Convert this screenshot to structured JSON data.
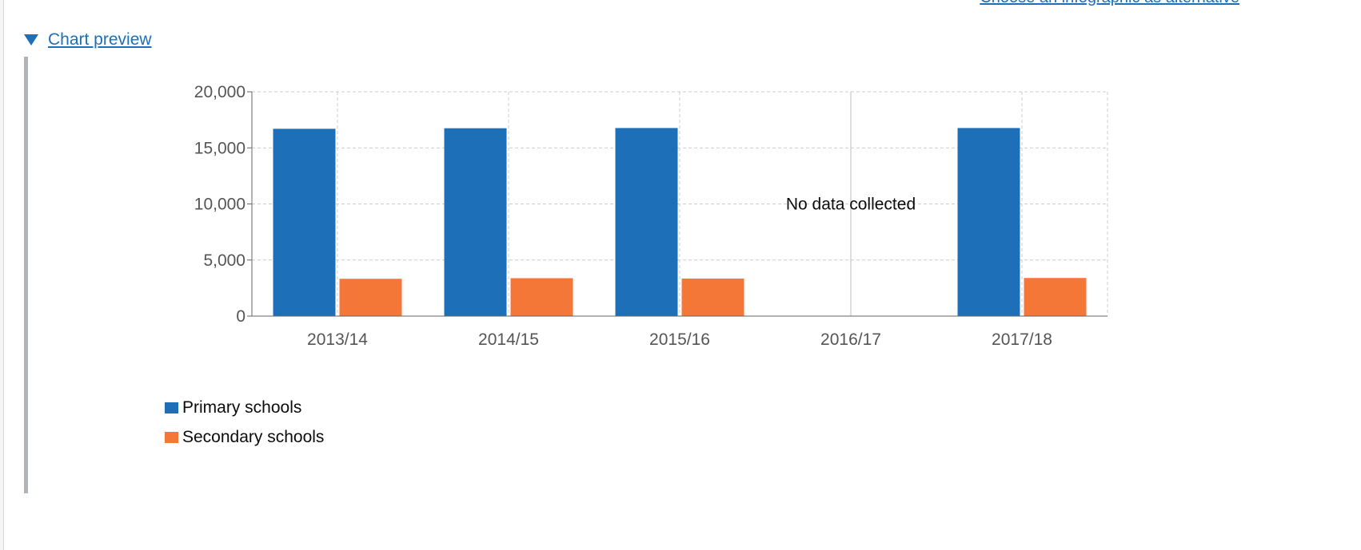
{
  "header": {
    "alt_link": "Choose an infographic as alternative"
  },
  "details": {
    "summary": "Chart preview"
  },
  "chart_data": {
    "type": "bar",
    "categories": [
      "2013/14",
      "2014/15",
      "2015/16",
      "2016/17",
      "2017/18"
    ],
    "series": [
      {
        "name": "Primary schools",
        "color": "#1d70b8",
        "values": [
          16700,
          16750,
          16770,
          null,
          16770
        ]
      },
      {
        "name": "Secondary schools",
        "color": "#f47738",
        "values": [
          3330,
          3380,
          3350,
          null,
          3400
        ]
      }
    ],
    "ylim": [
      0,
      20000
    ],
    "yticks": [
      "0",
      "5,000",
      "10,000",
      "15,000",
      "20,000"
    ],
    "grid": true,
    "annotations": [
      {
        "category": "2016/17",
        "text": "No data collected"
      }
    ],
    "legend_position": "bottom-left",
    "title": "",
    "xlabel": "",
    "ylabel": ""
  }
}
